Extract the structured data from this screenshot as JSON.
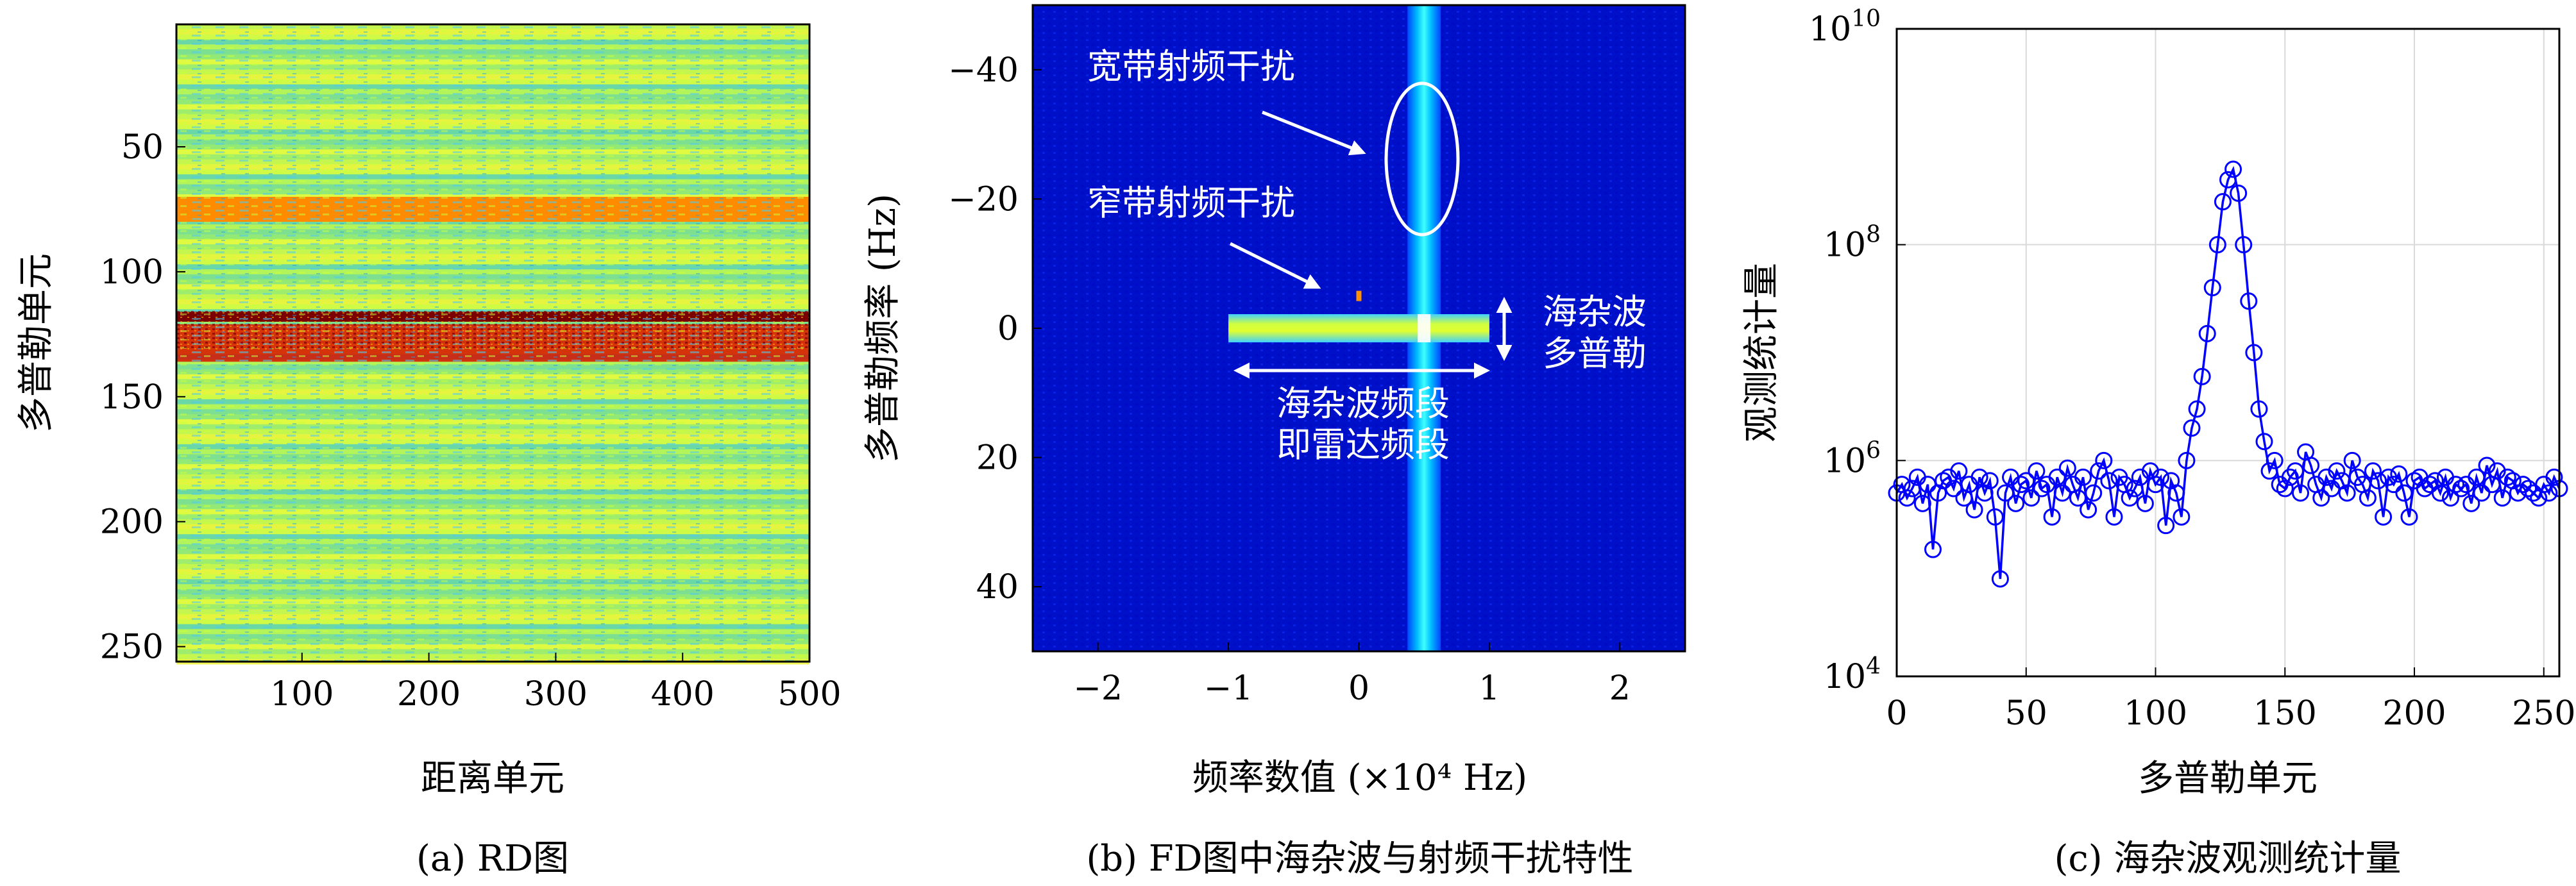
{
  "figure": {
    "panels": [
      {
        "caption": "(a) RD图"
      },
      {
        "caption": "(b) FD图中海杂波与射频干扰特性"
      },
      {
        "caption": "(c) 海杂波观测统计量"
      }
    ]
  },
  "chart_data": [
    {
      "type": "heatmap",
      "panel": "a",
      "xlabel": "距离单元",
      "ylabel": "多普勒单元",
      "xlim": [
        1,
        500
      ],
      "ylim": [
        256,
        1
      ],
      "xticks": [
        100,
        200,
        300,
        400,
        500
      ],
      "yticks": [
        50,
        100,
        150,
        200,
        250
      ],
      "colormap": "jet",
      "features": [
        {
          "doppler_range": [
            70,
            80
          ],
          "level": "high (orange)"
        },
        {
          "doppler_range": [
            116,
            120
          ],
          "level": "max (dark red)"
        },
        {
          "doppler_range": [
            121,
            136
          ],
          "level": "high (red, speckled)"
        }
      ]
    },
    {
      "type": "heatmap",
      "panel": "b",
      "xlabel": "频率数值 (×10⁴ Hz)",
      "ylabel": "多普勒频率 (Hz)",
      "xlim": [
        -2.5,
        2.5
      ],
      "ylim": [
        -50,
        50
      ],
      "xticks": [
        "−2",
        "−1",
        "0",
        "1",
        "2"
      ],
      "yticks": [
        "−40",
        "−20",
        "0",
        "20",
        "40"
      ],
      "colormap": "jet",
      "annotations": {
        "wideband": "宽带射频干扰",
        "narrowband": "窄带射频干扰",
        "sea_doppler_line1": "海杂波",
        "sea_doppler_line2": "多普勒",
        "sea_band_line1": "海杂波频段",
        "sea_band_line2": "即雷达频段"
      },
      "features": [
        {
          "name": "wideband interference",
          "freq": 0.5,
          "doppler_range": [
            -50,
            50
          ]
        },
        {
          "name": "sea clutter band",
          "freq_range": [
            -1,
            1
          ],
          "doppler": 0
        },
        {
          "name": "narrowband interference",
          "freq": 0.0,
          "doppler": -5
        }
      ]
    },
    {
      "type": "line",
      "panel": "c",
      "xlabel": "多普勒单元",
      "ylabel": "观测统计量",
      "xlim": [
        0,
        256
      ],
      "ylim": [
        10000,
        10000000000
      ],
      "yscale": "log",
      "grid": true,
      "xticks": [
        "0",
        "50",
        "100",
        "150",
        "200",
        "250"
      ],
      "yticks": [
        {
          "value": 10000,
          "base": "10",
          "exp": "4"
        },
        {
          "value": 1000000,
          "base": "10",
          "exp": "6"
        },
        {
          "value": 100000000,
          "base": "10",
          "exp": "8"
        },
        {
          "value": 10000000000,
          "base": "10",
          "exp": "10"
        }
      ],
      "color": "#0000ff",
      "marker": "circle",
      "x": [
        0,
        2,
        4,
        6,
        8,
        10,
        12,
        14,
        16,
        18,
        20,
        22,
        24,
        26,
        28,
        30,
        32,
        34,
        36,
        38,
        40,
        42,
        44,
        46,
        48,
        50,
        52,
        54,
        56,
        58,
        60,
        62,
        64,
        66,
        68,
        70,
        72,
        74,
        76,
        78,
        80,
        82,
        84,
        86,
        88,
        90,
        92,
        94,
        96,
        98,
        100,
        102,
        104,
        106,
        108,
        110,
        112,
        114,
        116,
        118,
        120,
        122,
        124,
        126,
        128,
        130,
        132,
        134,
        136,
        138,
        140,
        142,
        144,
        146,
        148,
        150,
        152,
        154,
        156,
        158,
        160,
        162,
        164,
        166,
        168,
        170,
        172,
        174,
        176,
        178,
        180,
        182,
        184,
        186,
        188,
        190,
        192,
        194,
        196,
        198,
        200,
        202,
        204,
        206,
        208,
        210,
        212,
        214,
        216,
        218,
        220,
        222,
        224,
        226,
        228,
        230,
        232,
        234,
        236,
        238,
        240,
        242,
        244,
        246,
        248,
        250,
        252,
        254,
        256
      ],
      "y": [
        500000,
        600000,
        450000,
        550000,
        700000,
        400000,
        600000,
        150000,
        500000,
        650000,
        700000,
        550000,
        800000,
        450000,
        600000,
        350000,
        700000,
        500000,
        650000,
        300000,
        80000,
        500000,
        700000,
        400000,
        600000,
        650000,
        450000,
        800000,
        550000,
        600000,
        300000,
        700000,
        500000,
        850000,
        600000,
        450000,
        700000,
        350000,
        500000,
        800000,
        1000000,
        650000,
        300000,
        700000,
        600000,
        450000,
        550000,
        700000,
        400000,
        800000,
        600000,
        700000,
        250000,
        650000,
        500000,
        300000,
        1000000,
        2000000,
        3000000,
        6000000,
        15000000,
        40000000,
        100000000,
        250000000,
        400000000,
        500000000,
        300000000,
        100000000,
        30000000,
        10000000,
        3000000,
        1500000,
        800000,
        1000000,
        600000,
        550000,
        700000,
        800000,
        500000,
        1200000,
        900000,
        600000,
        450000,
        700000,
        550000,
        800000,
        650000,
        500000,
        1000000,
        700000,
        600000,
        450000,
        800000,
        650000,
        300000,
        700000,
        600000,
        750000,
        500000,
        300000,
        650000,
        700000,
        550000,
        600000,
        650000,
        500000,
        700000,
        450000,
        600000,
        550000,
        600000,
        400000,
        700000,
        500000,
        900000,
        600000,
        800000,
        450000,
        700000,
        650000,
        500000,
        600000,
        550000,
        500000,
        450000,
        600000,
        500000,
        700000,
        550000
      ]
    }
  ]
}
